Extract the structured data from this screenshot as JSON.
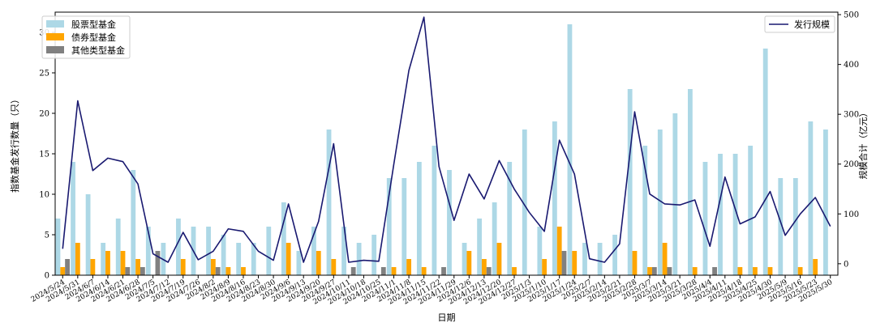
{
  "chart_data": {
    "type": "bar+line",
    "xlabel": "日期",
    "ylabel_left": "指数基金发行数量（只）",
    "ylabel_right": "规模合计（亿元）",
    "ylim_left": [
      0,
      32.5
    ],
    "ylim_right": [
      -23,
      505
    ],
    "yticks_left": [
      0,
      5,
      10,
      15,
      20,
      25,
      30
    ],
    "yticks_right": [
      0,
      100,
      200,
      300,
      400,
      500
    ],
    "categories": [
      "2024/5/24",
      "2024/5/31",
      "2024/6/7",
      "2024/6/14",
      "2024/6/21",
      "2024/6/28",
      "2024/7/5",
      "2024/7/12",
      "2024/7/19",
      "2024/7/26",
      "2024/8/2",
      "2024/8/9",
      "2024/8/16",
      "2024/8/23",
      "2024/8/30",
      "2024/9/6",
      "2024/9/13",
      "2024/9/20",
      "2024/9/27",
      "2024/10/11",
      "2024/10/18",
      "2024/10/25",
      "2024/11/1",
      "2024/11/8",
      "2024/11/15",
      "2024/11/22",
      "2024/11/29",
      "2024/12/6",
      "2024/12/13",
      "2024/12/20",
      "2024/12/27",
      "2025/1/3",
      "2025/1/10",
      "2025/1/17",
      "2025/1/24",
      "2025/2/7",
      "2025/2/14",
      "2025/2/21",
      "2025/2/28",
      "2025/3/7",
      "2025/3/14",
      "2025/3/21",
      "2025/3/28",
      "2025/4/4",
      "2025/4/11",
      "2025/4/18",
      "2025/4/25",
      "2025/4/30",
      "2025/5/9",
      "2025/5/16",
      "2025/5/23",
      "2025/5/30"
    ],
    "xtick_labels": [
      "2024/5/24",
      "2024/5/31",
      "2024/6/7",
      "2024/6/14",
      "2024/6/21",
      "2024/6/28",
      "2024/7/5",
      "2024/7/12",
      "2024/7/19",
      "2024/7/26",
      "2024/8/2",
      "2024/8/9",
      "2024/8/16",
      "2024/8/23",
      "2024/8/30",
      "2024/9/6",
      "2024/9/13",
      "2024/9/20",
      "2024/9/27",
      "2024/10/11",
      "2024/10/18",
      "2024/10/25",
      "2024/11/1",
      "2024/11/8",
      "2024/11/15",
      "2024/11/22",
      "2024/11/29",
      "2024/12/6",
      "2024/12/13",
      "2024/12/20",
      "2024/12/27",
      "2025/1/3",
      "2025/1/10",
      "2025/1/17",
      "2025/1/24",
      "2025/2/7",
      "2025/2/14",
      "2025/2/21",
      "2025/2/28",
      "2025/3/7",
      "2025/3/14",
      "2025/3/21",
      "2025/3/28",
      "2025/4/4",
      "2025/4/11",
      "2025/4/18",
      "2025/4/25",
      "2025/4/30",
      "2025/5/9",
      "2025/5/16",
      "2025/5/23",
      "2025/5/30"
    ],
    "bar_series": [
      {
        "name": "股票型基金",
        "color": "#add8e6",
        "values": [
          7,
          14,
          10,
          4,
          7,
          13,
          6,
          4,
          7,
          6,
          6,
          5,
          4,
          4,
          6,
          9,
          3,
          6,
          18,
          6,
          4,
          5,
          12,
          12,
          14,
          16,
          13,
          4,
          7,
          9,
          14,
          18,
          6,
          19,
          31,
          4,
          4,
          5,
          23,
          16,
          18,
          20,
          23,
          14,
          15,
          15,
          16,
          28,
          12,
          12,
          19,
          18
        ]
      },
      {
        "name": "债券型基金",
        "color": "#ffa500",
        "values": [
          1,
          4,
          2,
          3,
          3,
          2,
          0,
          0,
          2,
          0,
          2,
          1,
          1,
          0,
          0,
          4,
          0,
          3,
          2,
          0,
          0,
          0,
          1,
          2,
          1,
          0,
          0,
          3,
          2,
          4,
          1,
          0,
          2,
          6,
          3,
          0,
          0,
          0,
          3,
          1,
          4,
          0,
          1,
          0,
          0,
          1,
          1,
          1,
          0,
          1,
          2,
          0
        ]
      },
      {
        "name": "其他类型基金",
        "color": "#808080",
        "values": [
          2,
          0,
          0,
          0,
          1,
          1,
          3,
          0,
          0,
          0,
          1,
          0,
          0,
          0,
          0,
          0,
          0,
          0,
          0,
          1,
          0,
          1,
          0,
          0,
          0,
          1,
          0,
          0,
          1,
          0,
          0,
          0,
          0,
          3,
          0,
          0,
          0,
          0,
          0,
          1,
          1,
          0,
          0,
          1,
          0,
          0,
          0,
          0,
          0,
          0,
          0,
          0
        ]
      }
    ],
    "line_series": {
      "name": "发行规模",
      "color": "#191970",
      "values": [
        30,
        327,
        187,
        212,
        205,
        160,
        20,
        3,
        63,
        8,
        25,
        70,
        65,
        25,
        7,
        120,
        3,
        85,
        241,
        3,
        7,
        5,
        200,
        388,
        495,
        195,
        87,
        180,
        130,
        207,
        150,
        103,
        65,
        248,
        180,
        10,
        3,
        40,
        305,
        140,
        120,
        118,
        128,
        35,
        174,
        80,
        94,
        145,
        57,
        100,
        133,
        75
      ]
    },
    "legend_left": [
      "股票型基金",
      "债券型基金",
      "其他类型基金"
    ],
    "legend_right": [
      "发行规模"
    ],
    "legend_left_position": "top-left",
    "legend_right_position": "top-right",
    "grid": false
  }
}
